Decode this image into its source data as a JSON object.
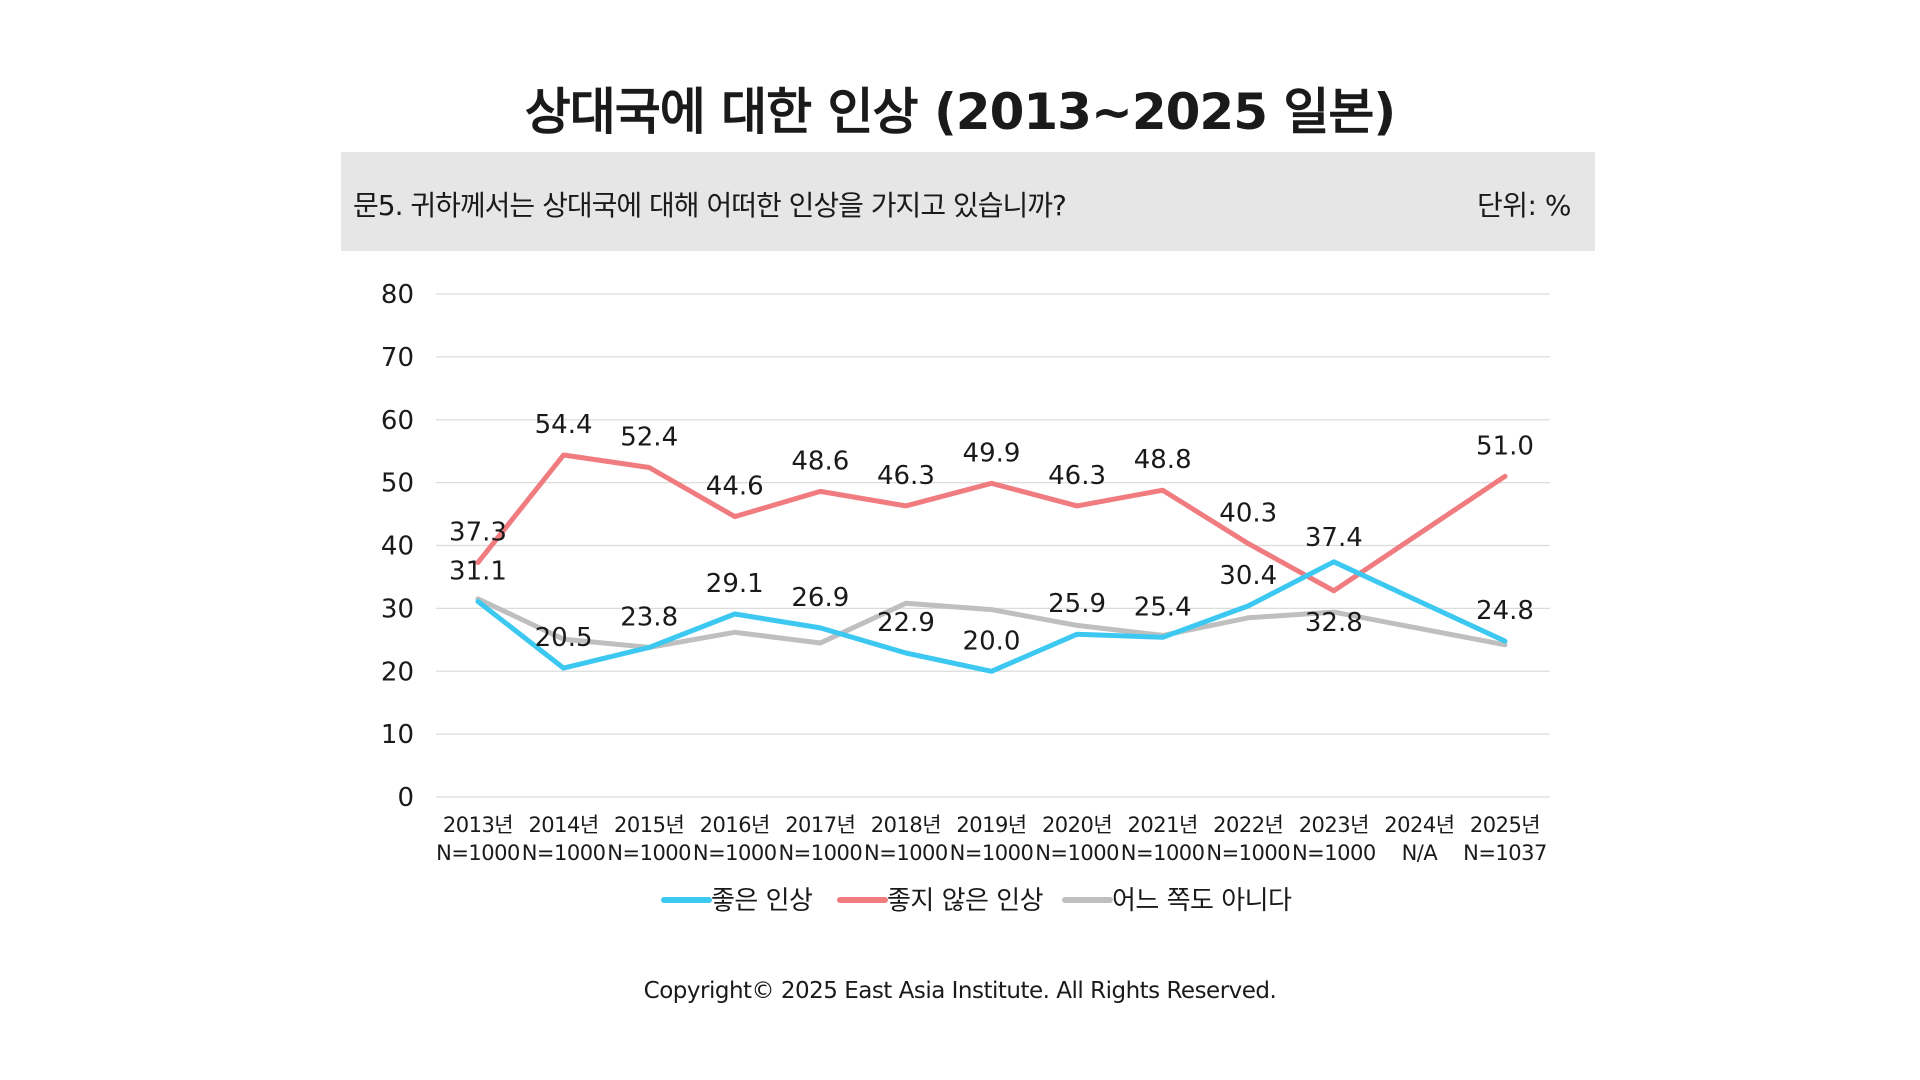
{
  "title": "상대국에 대한 인상 (2013~2025 일본)",
  "question": "문5. 귀하께서는 상대국에 대해 어떠한 인상을 가지고 있습니까?",
  "unit": "단위: %",
  "copyright": "Copyright© 2025 East Asia Institute. All Rights Reserved.",
  "chart_data": {
    "type": "line",
    "categories": [
      "2013년",
      "2014년",
      "2015년",
      "2016년",
      "2017년",
      "2018년",
      "2019년",
      "2020년",
      "2021년",
      "2022년",
      "2023년",
      "2024년",
      "2025년"
    ],
    "sample_sizes": [
      "N=1000",
      "N=1000",
      "N=1000",
      "N=1000",
      "N=1000",
      "N=1000",
      "N=1000",
      "N=1000",
      "N=1000",
      "N=1000",
      "N=1000",
      "N/A",
      "N=1037"
    ],
    "ylim": [
      0,
      80
    ],
    "yticks": [
      0,
      10,
      20,
      30,
      40,
      50,
      60,
      70,
      80
    ],
    "grid": true,
    "legend_position": "bottom",
    "series": [
      {
        "name": "좋은 인상",
        "color": "#3cc8f0",
        "values": [
          31.1,
          20.5,
          23.8,
          29.1,
          26.9,
          22.9,
          20.0,
          25.9,
          25.4,
          30.4,
          37.4,
          null,
          24.8
        ],
        "labels": [
          "31.1",
          "20.5",
          "23.8",
          "29.1",
          "26.9",
          "22.9",
          "20.0",
          "25.9",
          "25.4",
          "30.4",
          "37.4",
          "",
          "24.8"
        ]
      },
      {
        "name": "좋지 않은 인상",
        "color": "#f07c80",
        "values": [
          37.3,
          54.4,
          52.4,
          44.6,
          48.6,
          46.3,
          49.9,
          46.3,
          48.8,
          40.3,
          32.8,
          null,
          51.0
        ],
        "labels": [
          "37.3",
          "54.4",
          "52.4",
          "44.6",
          "48.6",
          "46.3",
          "49.9",
          "46.3",
          "48.8",
          "40.3",
          "32.8",
          "",
          "51.0"
        ]
      },
      {
        "name": "어느 쪽도 아니다",
        "color": "#bfbfbf",
        "values": [
          31.5,
          25.1,
          23.8,
          26.2,
          24.5,
          30.8,
          29.8,
          27.3,
          25.7,
          28.5,
          29.4,
          null,
          24.2
        ],
        "labels": [
          "",
          "",
          "",
          "",
          "",
          "",
          "",
          "",
          "",
          "",
          "",
          "",
          ""
        ]
      }
    ]
  }
}
